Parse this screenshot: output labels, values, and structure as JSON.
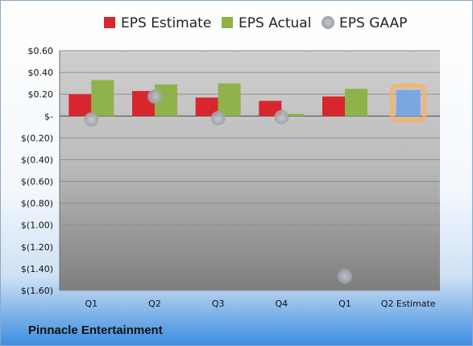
{
  "chart_data": {
    "type": "bar",
    "categories": [
      "Q1",
      "Q2",
      "Q3",
      "Q4",
      "Q1",
      "Q2 Estimate"
    ],
    "series": [
      {
        "name": "EPS Estimate",
        "values": [
          0.2,
          0.23,
          0.17,
          0.14,
          0.18,
          null
        ],
        "color": "#d8262e"
      },
      {
        "name": "EPS Actual",
        "values": [
          0.33,
          0.29,
          0.3,
          0.02,
          0.25,
          null
        ],
        "color": "#8fb24a"
      },
      {
        "name": "EPS GAAP",
        "values": [
          -0.03,
          0.18,
          -0.02,
          -0.01,
          -1.47,
          null
        ],
        "color": "#a9b0b8"
      }
    ],
    "estimate": {
      "category": "Q2 Estimate",
      "value": 0.24,
      "color": "#7aa7e0",
      "glow": "#f4b26a"
    },
    "y_ticks": [
      0.6,
      0.4,
      0.2,
      0,
      -0.2,
      -0.4,
      -0.6,
      -0.8,
      -1.0,
      -1.2,
      -1.4,
      -1.6
    ],
    "y_tick_labels": [
      "$0.60",
      "$0.40",
      "$0.20",
      "$-",
      "$(0.20)",
      "$(0.40)",
      "$(0.60)",
      "$(0.80)",
      "$(1.00)",
      "$(1.20)",
      "$(1.40)",
      "$(1.60)"
    ],
    "ylim": [
      -1.6,
      0.6
    ],
    "grid": true,
    "legend_position": "top",
    "title": "",
    "xlabel": "",
    "ylabel": ""
  },
  "footer": {
    "company": "Pinnacle Entertainment"
  }
}
